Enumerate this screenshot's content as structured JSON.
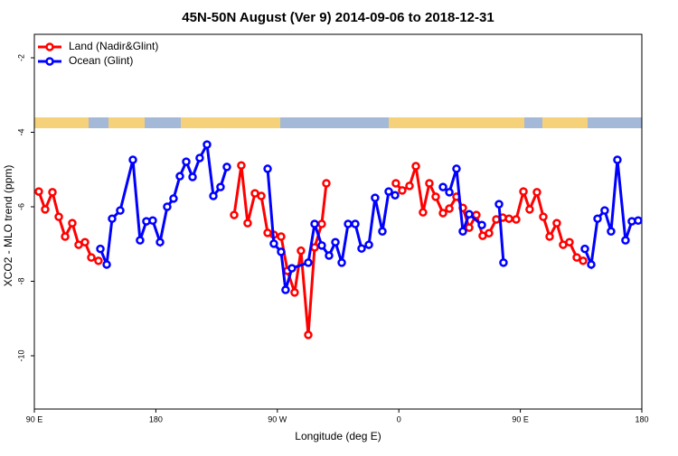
{
  "chart_data": {
    "type": "line",
    "title": "45N-50N August (Ver 9)   2014-09-06 to 2018-12-31",
    "x_label": "Longitude (deg E)",
    "y_label": "XCO2 - MLO trend (ppm)",
    "xlim": [
      90,
      540
    ],
    "xticks": [
      {
        "value": 90,
        "label": "90 E"
      },
      {
        "value": 180,
        "label": "180"
      },
      {
        "value": 270,
        "label": "90 W"
      },
      {
        "value": 360,
        "label": "0"
      },
      {
        "value": 450,
        "label": "90 E"
      },
      {
        "value": 540,
        "label": "180"
      }
    ],
    "ylim": [
      -11.43,
      -1.37
    ],
    "yticks": [
      -2,
      -4,
      -6,
      -8,
      -10
    ],
    "legend": "top-left",
    "series": [
      {
        "name": "Land (Nadir&Glint)",
        "color": "#ff0000",
        "x": [
          93.3,
          98.0,
          103.4,
          108.1,
          112.8,
          118.1,
          122.8,
          127.5,
          132.2,
          137.5,
          null,
          238.0,
          243.3,
          248.0,
          253.4,
          258.1,
          262.8,
          267.4,
          272.8,
          277.5,
          282.8,
          287.5,
          292.9,
          297.6,
          302.9,
          306.3,
          null,
          357.8,
          362.5,
          367.9,
          372.6,
          377.9,
          382.6,
          387.3,
          392.7,
          397.4,
          402.7,
          407.4,
          412.1,
          417.4,
          422.1,
          426.8,
          432.2,
          436.9,
          441.6,
          446.9,
          452.3,
          456.9,
          462.3,
          467.0,
          471.7,
          477.0,
          481.7,
          486.4,
          491.8,
          496.5
        ],
        "values": [
          -5.59,
          -6.07,
          -5.61,
          -6.27,
          -6.8,
          -6.44,
          -7.02,
          -6.95,
          -7.36,
          -7.45,
          null,
          -6.22,
          -4.89,
          -6.44,
          -5.64,
          -5.71,
          -6.7,
          -6.75,
          -6.8,
          -7.72,
          -8.3,
          -7.18,
          -9.44,
          -7.09,
          -6.46,
          -5.37,
          null,
          -5.37,
          -5.56,
          -5.44,
          -4.91,
          -6.15,
          -5.37,
          -5.73,
          -6.17,
          -6.05,
          -5.73,
          -6.03,
          -6.56,
          -6.22,
          -6.78,
          -6.71,
          -6.34,
          -6.29,
          -6.32,
          -6.34,
          -5.59,
          -6.07,
          -5.61,
          -6.27,
          -6.8,
          -6.44,
          -7.02,
          -6.95,
          -7.36,
          -7.45
        ]
      },
      {
        "name": "Ocean (Glint)",
        "color": "#0000ff",
        "x": [
          138.9,
          143.6,
          147.6,
          153.6,
          163.0,
          168.3,
          173.0,
          177.7,
          183.1,
          188.4,
          193.1,
          197.8,
          202.5,
          207.2,
          212.5,
          217.9,
          222.6,
          227.9,
          232.6,
          null,
          262.8,
          267.4,
          272.8,
          276.1,
          280.8,
          292.9,
          297.6,
          302.9,
          308.3,
          313.0,
          317.7,
          322.4,
          327.7,
          332.4,
          337.8,
          342.4,
          347.8,
          352.5,
          357.2,
          null,
          392.7,
          397.4,
          402.7,
          407.4,
          412.1,
          421.5,
          null,
          434.2,
          437.5,
          null,
          497.8,
          502.5,
          507.2,
          512.5,
          517.2,
          521.9,
          527.9,
          532.6,
          537.3
        ],
        "values": [
          -7.13,
          -7.55,
          -6.32,
          -6.1,
          -4.74,
          -6.9,
          -6.39,
          -6.37,
          -6.95,
          -6.0,
          -5.78,
          -5.18,
          -4.79,
          -5.2,
          -4.69,
          -4.33,
          -5.71,
          -5.47,
          -4.93,
          null,
          -4.98,
          -6.99,
          -7.21,
          -8.23,
          -7.65,
          -7.5,
          -6.46,
          -7.04,
          -7.31,
          -6.95,
          -7.5,
          -6.46,
          -6.46,
          -7.12,
          -7.02,
          -5.76,
          -6.66,
          -5.59,
          -5.69,
          null,
          -5.47,
          -5.61,
          -4.98,
          -6.66,
          -6.2,
          -6.49,
          null,
          -5.93,
          -7.5,
          null,
          -7.13,
          -7.55,
          -6.32,
          -6.1,
          -6.66,
          -4.74,
          -6.9,
          -6.39,
          -6.37
        ]
      }
    ]
  }
}
